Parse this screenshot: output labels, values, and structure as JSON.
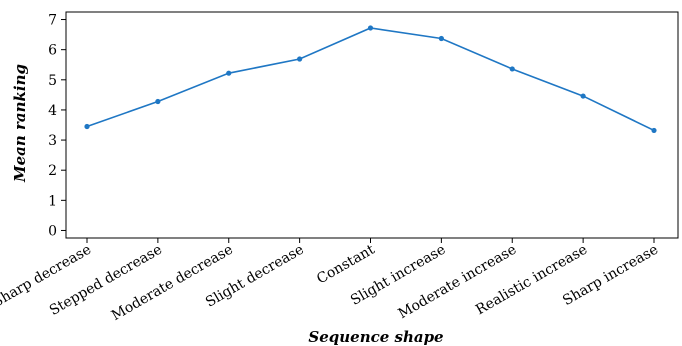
{
  "chart_data": {
    "type": "line",
    "categories": [
      "Sharp decrease",
      "Stepped decrease",
      "Moderate decrease",
      "Slight decrease",
      "Constant",
      "Slight increase",
      "Moderate increase",
      "Realistic increase",
      "Sharp increase"
    ],
    "series": [
      {
        "values": [
          3.45,
          4.28,
          5.22,
          5.69,
          6.72,
          6.37,
          5.36,
          4.46,
          3.32
        ],
        "color": "#1f77c4"
      }
    ],
    "xlabel": "Sequence shape",
    "ylabel": "Mean ranking",
    "ylim": [
      -0.25,
      7.25
    ],
    "yticks": [
      0,
      1,
      2,
      3,
      4,
      5,
      6,
      7
    ],
    "grid": false,
    "x_tick_rotation": -30
  }
}
